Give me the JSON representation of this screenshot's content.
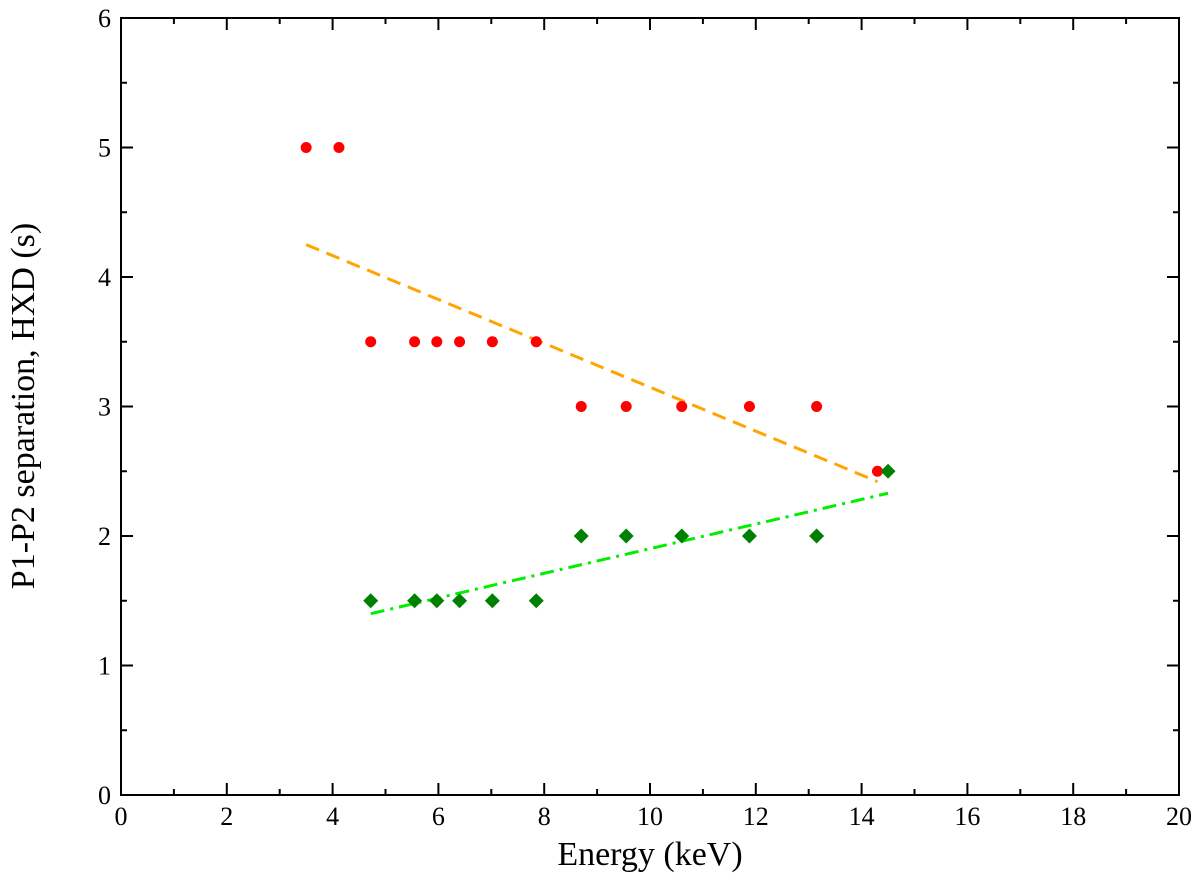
{
  "chart_data": {
    "type": "scatter",
    "title": "",
    "xlabel": "Energy  (keV)",
    "ylabel": "P1-P2 separation,  HXD  (s)",
    "xlim": [
      0,
      20
    ],
    "ylim": [
      0,
      6
    ],
    "xticks": [
      "0",
      "2",
      "4",
      "6",
      "8",
      "10",
      "12",
      "14",
      "16",
      "18",
      "20"
    ],
    "yticks": [
      "0",
      "1",
      "2",
      "3",
      "4",
      "5",
      "6"
    ],
    "grid": false,
    "series": [
      {
        "name": "P1-P2 separation (red points)",
        "marker": "circle",
        "color": "#ff0000",
        "points": [
          [
            3.5,
            5.0
          ],
          [
            4.12,
            5.0
          ],
          [
            4.72,
            3.5
          ],
          [
            5.55,
            3.5
          ],
          [
            5.97,
            3.5
          ],
          [
            6.4,
            3.5
          ],
          [
            7.02,
            3.5
          ],
          [
            7.85,
            3.5
          ],
          [
            8.7,
            3.0
          ],
          [
            9.55,
            3.0
          ],
          [
            10.6,
            3.0
          ],
          [
            11.88,
            3.0
          ],
          [
            13.15,
            3.0
          ],
          [
            14.3,
            2.5
          ]
        ]
      },
      {
        "name": "P1-P2 separation (green diamonds)",
        "marker": "diamond",
        "color": "#008000",
        "points": [
          [
            4.72,
            1.5
          ],
          [
            5.55,
            1.5
          ],
          [
            5.97,
            1.5
          ],
          [
            6.4,
            1.5
          ],
          [
            7.02,
            1.5
          ],
          [
            7.85,
            1.5
          ],
          [
            8.7,
            2.0
          ],
          [
            9.55,
            2.0
          ],
          [
            10.6,
            2.0
          ],
          [
            11.88,
            2.0
          ],
          [
            13.15,
            2.0
          ],
          [
            14.5,
            2.5
          ]
        ]
      }
    ],
    "fit_lines": [
      {
        "name": "red fit",
        "style": "dashed",
        "color": "#ffa500",
        "points": [
          [
            3.5,
            4.25
          ],
          [
            14.3,
            2.42
          ]
        ]
      },
      {
        "name": "green fit",
        "style": "dash-dot",
        "color": "#00ee00",
        "points": [
          [
            4.72,
            1.4
          ],
          [
            14.5,
            2.33
          ]
        ]
      }
    ]
  }
}
